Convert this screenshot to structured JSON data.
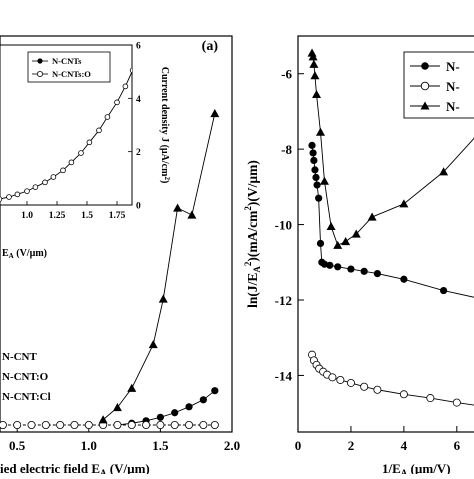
{
  "chart_data": [
    {
      "panel": "left",
      "type": "line",
      "panel_label": "(a)",
      "xlabel": "ied electric field E",
      "xlabel_sub": "A",
      "xlabel_unit": "(V/µm)",
      "xlim": [
        0.38,
        2.0
      ],
      "ylim": [
        0,
        10
      ],
      "x_ticks": [
        0.5,
        1.0,
        1.5,
        2.0
      ],
      "x_tick_labels": [
        "0.5",
        "1.0",
        "1.5",
        "2.0"
      ],
      "legend": {
        "placement": "bottom-left",
        "entries": [
          "N-CNT",
          "N-CNT:O",
          "N-CNT:Cl"
        ]
      },
      "series": [
        {
          "name": "N-CNT",
          "marker": "filled-circle",
          "x": [
            1.2,
            1.3,
            1.4,
            1.5,
            1.6,
            1.7,
            1.8,
            1.88
          ],
          "y": [
            0.0,
            0.05,
            0.12,
            0.22,
            0.35,
            0.52,
            0.72,
            0.98
          ]
        },
        {
          "name": "N-CNT:O",
          "marker": "open-circle",
          "dashed": true,
          "x": [
            0.4,
            0.5,
            0.6,
            0.7,
            0.8,
            0.9,
            1.0,
            1.1,
            1.2,
            1.3,
            1.4,
            1.5,
            1.6,
            1.7,
            1.8,
            1.88
          ],
          "y": [
            0.0,
            0.0,
            0.0,
            0.0,
            0.0,
            0.0,
            0.0,
            0.0,
            0.0,
            0.0,
            0.0,
            0.0,
            0.0,
            0.0,
            0.0,
            0.0
          ]
        },
        {
          "name": "N-CNT:Cl",
          "marker": "filled-triangle",
          "x": [
            1.1,
            1.2,
            1.3,
            1.45,
            1.52,
            1.62,
            1.72,
            1.88
          ],
          "y": [
            0.15,
            0.5,
            1.05,
            2.3,
            3.6,
            6.2,
            6.0,
            8.9
          ]
        }
      ],
      "inset": {
        "type": "line",
        "ylabel": "Current density J (µA/cm",
        "ylabel_sup": "2",
        "ylabel_end": ")",
        "xlabel": "E",
        "xlabel_sub": "A",
        "xlabel_unit": "(V/µm)",
        "xlim": [
          0.4,
          2.0
        ],
        "ylim": [
          0,
          6
        ],
        "x_ticks": [
          1.0,
          1.25,
          1.5,
          1.75
        ],
        "x_tick_labels": [
          "1.0",
          "1.25",
          "1.5",
          "1.75"
        ],
        "y_ticks": [
          0,
          2,
          4,
          6
        ],
        "y_tick_labels": [
          "0",
          "2",
          "4",
          "6"
        ],
        "legend": {
          "placement": "top-right",
          "entries": [
            "N-CNTs",
            "N-CNTs:O"
          ]
        },
        "series": [
          {
            "name": "N-CNTs:O",
            "marker": "open-circle",
            "x": [
              0.4,
              0.47,
              0.55,
              0.62,
              0.7,
              0.77,
              0.85,
              0.92,
              1.0,
              1.07,
              1.15,
              1.22,
              1.3,
              1.37,
              1.45,
              1.52,
              1.6,
              1.67,
              1.75,
              1.82,
              1.88
            ],
            "y": [
              0.0,
              0.02,
              0.05,
              0.1,
              0.15,
              0.22,
              0.3,
              0.4,
              0.52,
              0.67,
              0.85,
              1.05,
              1.3,
              1.6,
              1.95,
              2.35,
              2.8,
              3.3,
              3.85,
              4.45,
              5.05
            ]
          }
        ]
      }
    },
    {
      "panel": "right",
      "type": "line",
      "ylabel": "ln(J/E",
      "ylabel_sub": "A",
      "ylabel_sup": "2",
      "ylabel_end": ")(mA/cm",
      "ylabel_sup2": "2",
      "ylabel_tail": ")(V/µm)",
      "xlabel": "1/E",
      "xlabel_sub": "A",
      "xlabel_unit": "(µm/V)",
      "xlim": [
        0,
        6.8
      ],
      "ylim": [
        -15.5,
        -5.0
      ],
      "x_ticks": [
        0,
        2,
        4,
        6
      ],
      "x_tick_labels": [
        "0",
        "2",
        "4",
        "6"
      ],
      "y_ticks": [
        -6,
        -8,
        -10,
        -12,
        -14
      ],
      "y_tick_labels": [
        "-6",
        "-8",
        "-10",
        "-12",
        "-14"
      ],
      "legend": {
        "placement": "top-right",
        "entries": [
          "N-",
          "N-",
          "N-"
        ]
      },
      "series": [
        {
          "name": "N-",
          "marker": "filled-circle",
          "x": [
            0.53,
            0.57,
            0.6,
            0.64,
            0.68,
            0.72,
            0.78,
            0.85,
            0.9,
            1.0,
            1.2,
            1.5,
            2.0,
            2.5,
            3.0,
            4.0,
            5.5,
            6.8
          ],
          "y": [
            -7.9,
            -8.1,
            -8.3,
            -8.55,
            -8.75,
            -8.95,
            -9.3,
            -10.5,
            -11.0,
            -11.05,
            -11.08,
            -11.12,
            -11.18,
            -11.24,
            -11.3,
            -11.45,
            -11.75,
            -11.95
          ]
        },
        {
          "name": "N-",
          "marker": "open-circle",
          "x": [
            0.53,
            0.6,
            0.7,
            0.8,
            0.95,
            1.1,
            1.3,
            1.6,
            2.0,
            2.5,
            3.0,
            4.0,
            5.0,
            6.0,
            6.8
          ],
          "y": [
            -13.45,
            -13.6,
            -13.72,
            -13.82,
            -13.9,
            -13.98,
            -14.05,
            -14.12,
            -14.2,
            -14.3,
            -14.38,
            -14.5,
            -14.6,
            -14.72,
            -14.8
          ]
        },
        {
          "name": "N-",
          "marker": "filled-triangle",
          "x": [
            0.53,
            0.57,
            0.6,
            0.64,
            0.7,
            0.85,
            1.0,
            1.25,
            1.5,
            1.8,
            2.2,
            2.8,
            4.0,
            5.5,
            6.8
          ],
          "y": [
            -5.45,
            -5.55,
            -5.75,
            -6.05,
            -6.55,
            -7.55,
            -8.85,
            -10.05,
            -10.55,
            -10.45,
            -10.25,
            -9.8,
            -9.45,
            -8.6,
            -7.6
          ]
        }
      ]
    }
  ]
}
